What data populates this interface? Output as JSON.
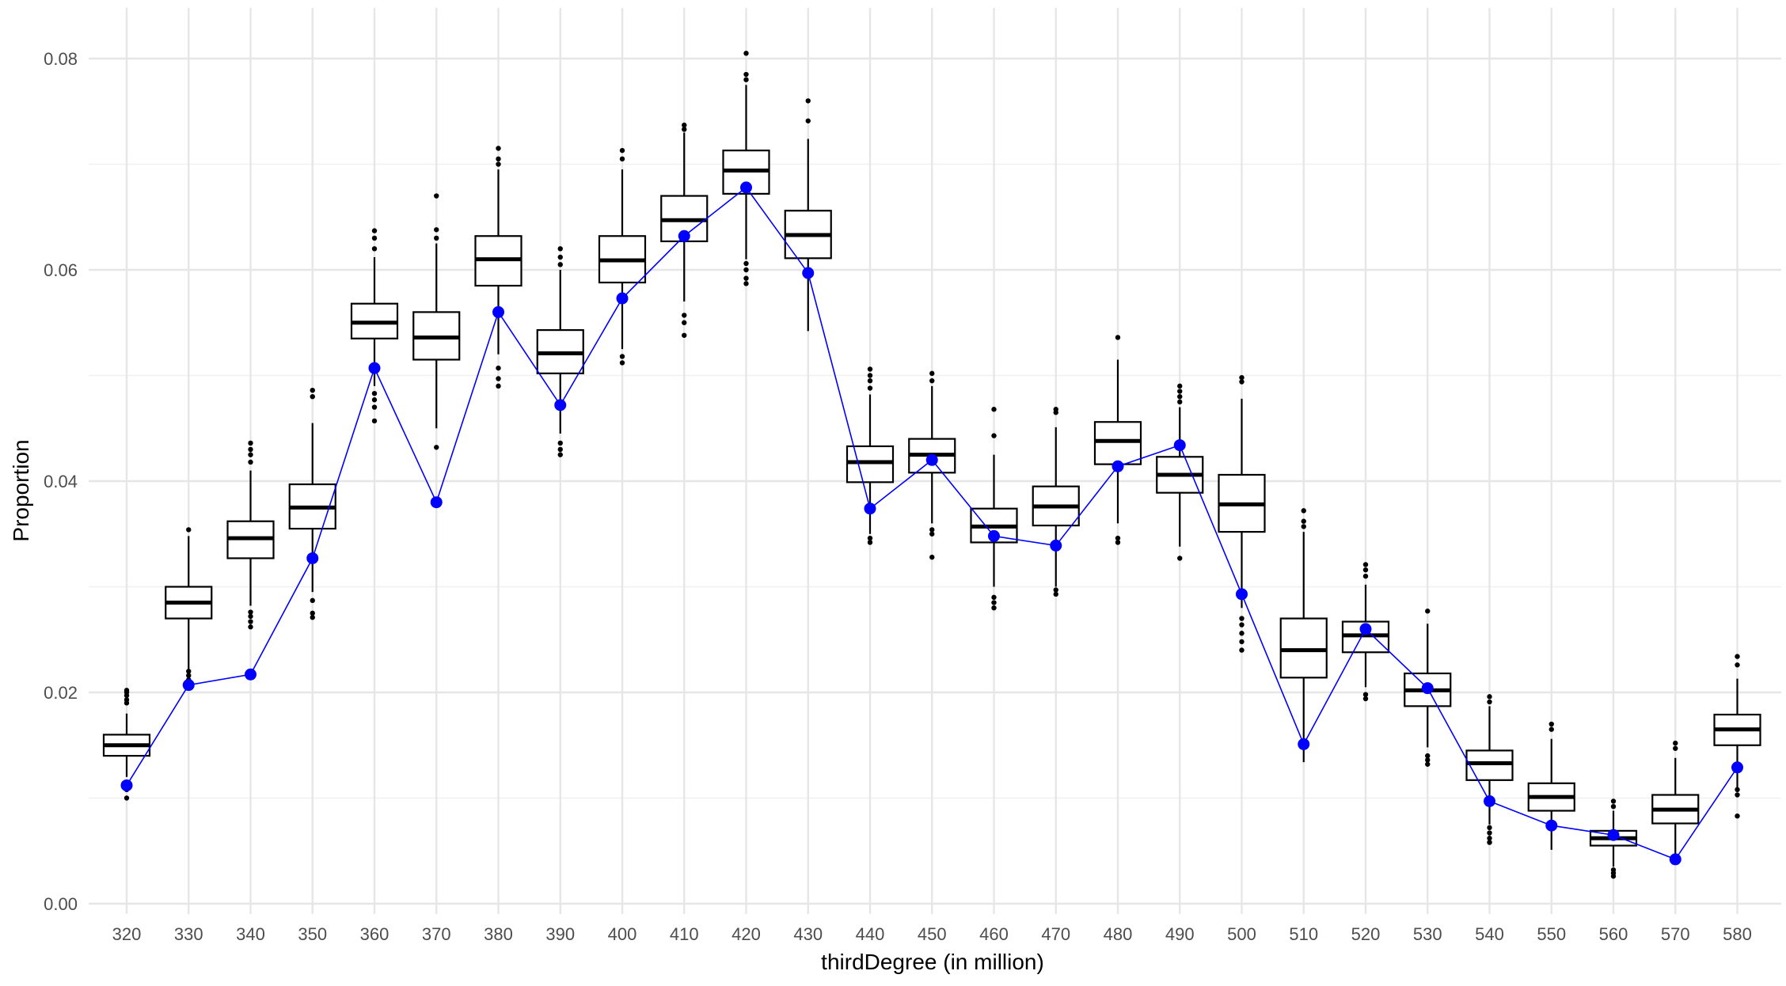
{
  "chart_data": {
    "type": "boxplot",
    "xlabel": "thirdDegree (in million)",
    "ylabel": "Proportion",
    "ylim": [
      0,
      0.08
    ],
    "y_ticks": [
      "0.00",
      "0.02",
      "0.04",
      "0.06",
      "0.08"
    ],
    "grid": true,
    "categories": [
      "320",
      "330",
      "340",
      "350",
      "360",
      "370",
      "380",
      "390",
      "400",
      "410",
      "420",
      "430",
      "440",
      "450",
      "460",
      "470",
      "480",
      "490",
      "500",
      "510",
      "520",
      "530",
      "540",
      "550",
      "560",
      "570",
      "580"
    ],
    "boxes": [
      {
        "whisker_low": 0.012,
        "q1": 0.014,
        "median": 0.015,
        "q3": 0.016,
        "whisker_high": 0.018,
        "outliers": [
          0.01,
          0.0108,
          0.0113,
          0.019,
          0.0193,
          0.0197,
          0.02,
          0.0202
        ]
      },
      {
        "whisker_low": 0.0222,
        "q1": 0.027,
        "median": 0.0285,
        "q3": 0.03,
        "whisker_high": 0.0348,
        "outliers": [
          0.0212,
          0.0216,
          0.022,
          0.0354
        ]
      },
      {
        "whisker_low": 0.0282,
        "q1": 0.0327,
        "median": 0.0346,
        "q3": 0.0362,
        "whisker_high": 0.041,
        "outliers": [
          0.0262,
          0.0267,
          0.0272,
          0.0276,
          0.0418,
          0.0425,
          0.043,
          0.0436
        ]
      },
      {
        "whisker_low": 0.0295,
        "q1": 0.0355,
        "median": 0.0375,
        "q3": 0.0397,
        "whisker_high": 0.0455,
        "outliers": [
          0.0271,
          0.0275,
          0.0287,
          0.048,
          0.0486
        ]
      },
      {
        "whisker_low": 0.049,
        "q1": 0.0535,
        "median": 0.055,
        "q3": 0.0568,
        "whisker_high": 0.0612,
        "outliers": [
          0.0457,
          0.047,
          0.0477,
          0.0483,
          0.062,
          0.063,
          0.0637
        ]
      },
      {
        "whisker_low": 0.045,
        "q1": 0.0515,
        "median": 0.0536,
        "q3": 0.056,
        "whisker_high": 0.0625,
        "outliers": [
          0.0432,
          0.063,
          0.0638,
          0.067
        ]
      },
      {
        "whisker_low": 0.052,
        "q1": 0.0585,
        "median": 0.061,
        "q3": 0.0632,
        "whisker_high": 0.0695,
        "outliers": [
          0.049,
          0.0497,
          0.0507,
          0.07,
          0.0705,
          0.0715
        ]
      },
      {
        "whisker_low": 0.0445,
        "q1": 0.0502,
        "median": 0.0521,
        "q3": 0.0543,
        "whisker_high": 0.06,
        "outliers": [
          0.0425,
          0.043,
          0.0436,
          0.0605,
          0.0612,
          0.062
        ]
      },
      {
        "whisker_low": 0.0525,
        "q1": 0.0588,
        "median": 0.0609,
        "q3": 0.0632,
        "whisker_high": 0.0695,
        "outliers": [
          0.0512,
          0.0518,
          0.0705,
          0.0713
        ]
      },
      {
        "whisker_low": 0.057,
        "q1": 0.0627,
        "median": 0.0647,
        "q3": 0.067,
        "whisker_high": 0.073,
        "outliers": [
          0.0538,
          0.055,
          0.0557,
          0.0733,
          0.0737
        ]
      },
      {
        "whisker_low": 0.061,
        "q1": 0.0672,
        "median": 0.0694,
        "q3": 0.0713,
        "whisker_high": 0.0775,
        "outliers": [
          0.0587,
          0.0592,
          0.06,
          0.0606,
          0.078,
          0.0785,
          0.0805
        ]
      },
      {
        "whisker_low": 0.0542,
        "q1": 0.0611,
        "median": 0.0633,
        "q3": 0.0656,
        "whisker_high": 0.0724,
        "outliers": [
          0.0741,
          0.076
        ]
      },
      {
        "whisker_low": 0.035,
        "q1": 0.0399,
        "median": 0.0418,
        "q3": 0.0433,
        "whisker_high": 0.0482,
        "outliers": [
          0.0342,
          0.0346,
          0.0488,
          0.0495,
          0.05,
          0.0506
        ]
      },
      {
        "whisker_low": 0.036,
        "q1": 0.0408,
        "median": 0.0425,
        "q3": 0.044,
        "whisker_high": 0.049,
        "outliers": [
          0.0328,
          0.035,
          0.0354,
          0.0495,
          0.0502
        ]
      },
      {
        "whisker_low": 0.03,
        "q1": 0.0342,
        "median": 0.0357,
        "q3": 0.0374,
        "whisker_high": 0.0425,
        "outliers": [
          0.028,
          0.0285,
          0.029,
          0.0443,
          0.0468
        ]
      },
      {
        "whisker_low": 0.03,
        "q1": 0.0358,
        "median": 0.0376,
        "q3": 0.0395,
        "whisker_high": 0.0451,
        "outliers": [
          0.0293,
          0.0297,
          0.0465,
          0.0468
        ]
      },
      {
        "whisker_low": 0.036,
        "q1": 0.0416,
        "median": 0.0438,
        "q3": 0.0456,
        "whisker_high": 0.0515,
        "outliers": [
          0.0342,
          0.0346,
          0.0536
        ]
      },
      {
        "whisker_low": 0.0338,
        "q1": 0.0389,
        "median": 0.0406,
        "q3": 0.0423,
        "whisker_high": 0.047,
        "outliers": [
          0.0327,
          0.0475,
          0.048,
          0.0485,
          0.049
        ]
      },
      {
        "whisker_low": 0.028,
        "q1": 0.0352,
        "median": 0.0378,
        "q3": 0.0406,
        "whisker_high": 0.0478,
        "outliers": [
          0.024,
          0.0248,
          0.0256,
          0.0264,
          0.027,
          0.0494,
          0.0498
        ]
      },
      {
        "whisker_low": 0.0134,
        "q1": 0.0214,
        "median": 0.024,
        "q3": 0.027,
        "whisker_high": 0.0352,
        "outliers": [
          0.0357,
          0.0362,
          0.0372
        ]
      },
      {
        "whisker_low": 0.0205,
        "q1": 0.0238,
        "median": 0.0254,
        "q3": 0.0267,
        "whisker_high": 0.0302,
        "outliers": [
          0.0194,
          0.0198,
          0.031,
          0.0316,
          0.0321
        ]
      },
      {
        "whisker_low": 0.0148,
        "q1": 0.0187,
        "median": 0.0202,
        "q3": 0.0218,
        "whisker_high": 0.0265,
        "outliers": [
          0.0132,
          0.0136,
          0.014,
          0.0277
        ]
      },
      {
        "whisker_low": 0.0075,
        "q1": 0.0117,
        "median": 0.0133,
        "q3": 0.0145,
        "whisker_high": 0.0187,
        "outliers": [
          0.0058,
          0.0062,
          0.0067,
          0.0072,
          0.0191,
          0.0196
        ]
      },
      {
        "whisker_low": 0.0051,
        "q1": 0.0088,
        "median": 0.0101,
        "q3": 0.0114,
        "whisker_high": 0.0156,
        "outliers": [
          0.0165,
          0.017
        ]
      },
      {
        "whisker_low": 0.0035,
        "q1": 0.0055,
        "median": 0.0062,
        "q3": 0.0069,
        "whisker_high": 0.0088,
        "outliers": [
          0.0026,
          0.0029,
          0.0032,
          0.0092,
          0.0097
        ]
      },
      {
        "whisker_low": 0.0043,
        "q1": 0.0076,
        "median": 0.0089,
        "q3": 0.0103,
        "whisker_high": 0.0138,
        "outliers": [
          0.0147,
          0.0152
        ]
      },
      {
        "whisker_low": 0.011,
        "q1": 0.015,
        "median": 0.0165,
        "q3": 0.0179,
        "whisker_high": 0.0213,
        "outliers": [
          0.0083,
          0.0103,
          0.0108,
          0.0226,
          0.0234
        ]
      }
    ],
    "observed": {
      "color": "#0000ff",
      "values": [
        0.0112,
        0.0207,
        0.0217,
        0.0327,
        0.0507,
        0.038,
        0.056,
        0.0472,
        0.0573,
        0.0632,
        0.0678,
        0.0597,
        0.0374,
        0.042,
        0.0348,
        0.0339,
        0.0414,
        0.0434,
        0.0293,
        0.0151,
        0.026,
        0.0204,
        0.0097,
        0.0074,
        0.0065,
        0.0042,
        0.0129
      ]
    }
  }
}
